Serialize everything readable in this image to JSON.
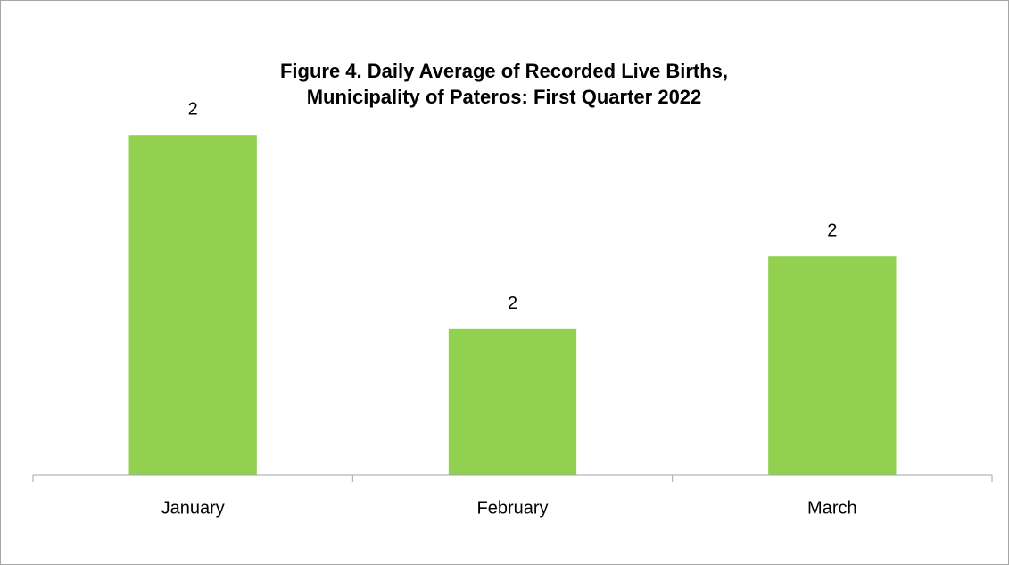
{
  "chart_data": {
    "type": "bar",
    "title": [
      "Figure 4. Daily Average of Recorded Live Births,",
      "Municipality of Pateros: First Quarter 2022"
    ],
    "categories": [
      "January",
      "February",
      "March"
    ],
    "values": [
      2.4,
      1.6,
      1.9
    ],
    "value_labels": [
      "2",
      "2",
      "2"
    ],
    "color": "#92d050",
    "ylim": [
      1,
      2.5
    ]
  }
}
